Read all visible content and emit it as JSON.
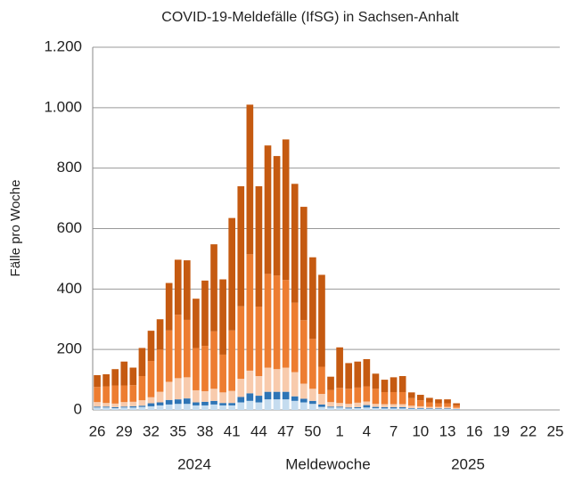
{
  "chart_data": {
    "type": "bar",
    "stacked": true,
    "title": "COVID-19-Meldefälle (IfSG) in Sachsen-Anhalt",
    "x_label": "Meldewoche",
    "y_label": "Fälle pro Woche",
    "annotations": [
      "2024",
      "2025"
    ],
    "categories": [
      26,
      null,
      null,
      29,
      null,
      null,
      32,
      null,
      null,
      35,
      null,
      null,
      38,
      null,
      null,
      41,
      null,
      null,
      44,
      null,
      null,
      47,
      null,
      null,
      50,
      null,
      null,
      1,
      null,
      null,
      4,
      null,
      null,
      7,
      null,
      null,
      10,
      null,
      null,
      13,
      null,
      null,
      16,
      null,
      null,
      19,
      null,
      null,
      22,
      null,
      null,
      25
    ],
    "series": [
      {
        "color": "#c5dcef",
        "values": [
          8,
          8,
          6,
          8,
          8,
          10,
          12,
          15,
          18,
          20,
          20,
          15,
          15,
          18,
          15,
          15,
          25,
          30,
          25,
          35,
          35,
          35,
          30,
          25,
          20,
          10,
          8,
          8,
          5,
          6,
          8,
          6,
          5,
          5,
          5,
          4,
          4,
          3,
          3,
          3,
          2,
          0,
          0,
          0,
          0,
          0,
          0,
          0,
          0,
          0,
          0,
          0
        ]
      },
      {
        "color": "#2e75b6",
        "values": [
          3,
          3,
          3,
          3,
          4,
          4,
          10,
          10,
          15,
          15,
          18,
          10,
          12,
          12,
          8,
          8,
          18,
          25,
          22,
          25,
          25,
          25,
          15,
          12,
          10,
          8,
          3,
          3,
          3,
          3,
          8,
          4,
          4,
          4,
          4,
          2,
          2,
          2,
          2,
          2,
          1,
          0,
          0,
          0,
          0,
          0,
          0,
          0,
          0,
          0,
          0,
          0
        ]
      },
      {
        "color": "#f8cbad",
        "values": [
          15,
          12,
          12,
          15,
          15,
          18,
          20,
          35,
          60,
          70,
          70,
          40,
          35,
          40,
          35,
          40,
          60,
          75,
          65,
          80,
          75,
          80,
          80,
          50,
          40,
          35,
          15,
          12,
          12,
          15,
          12,
          10,
          10,
          10,
          10,
          8,
          6,
          5,
          5,
          5,
          4,
          0,
          0,
          0,
          0,
          0,
          0,
          0,
          0,
          0,
          0,
          0
        ]
      },
      {
        "color": "#ed7d31",
        "values": [
          50,
          55,
          60,
          55,
          55,
          80,
          120,
          140,
          170,
          210,
          190,
          140,
          150,
          190,
          125,
          200,
          240,
          385,
          230,
          310,
          310,
          290,
          230,
          210,
          165,
          90,
          40,
          50,
          50,
          50,
          50,
          50,
          40,
          40,
          40,
          25,
          20,
          15,
          12,
          12,
          8,
          0,
          0,
          0,
          0,
          0,
          0,
          0,
          0,
          0,
          0,
          0
        ]
      },
      {
        "color": "#c55a11",
        "values": [
          39,
          40,
          54,
          79,
          58,
          93,
          100,
          100,
          157,
          182,
          197,
          163,
          216,
          288,
          249,
          372,
          397,
          495,
          398,
          425,
          395,
          465,
          393,
          375,
          270,
          304,
          44,
          134,
          85,
          86,
          90,
          50,
          41,
          49,
          53,
          19,
          18,
          15,
          13,
          13,
          7,
          0,
          0,
          0,
          0,
          0,
          0,
          0,
          0,
          0,
          0,
          0
        ]
      }
    ],
    "ylim": [
      0,
      1200
    ],
    "yticks": [
      0,
      200,
      400,
      600,
      800,
      {
        "value": 1000,
        "label": "1.000"
      },
      {
        "value": 1200,
        "label": "1.200"
      }
    ],
    "grid": true
  }
}
